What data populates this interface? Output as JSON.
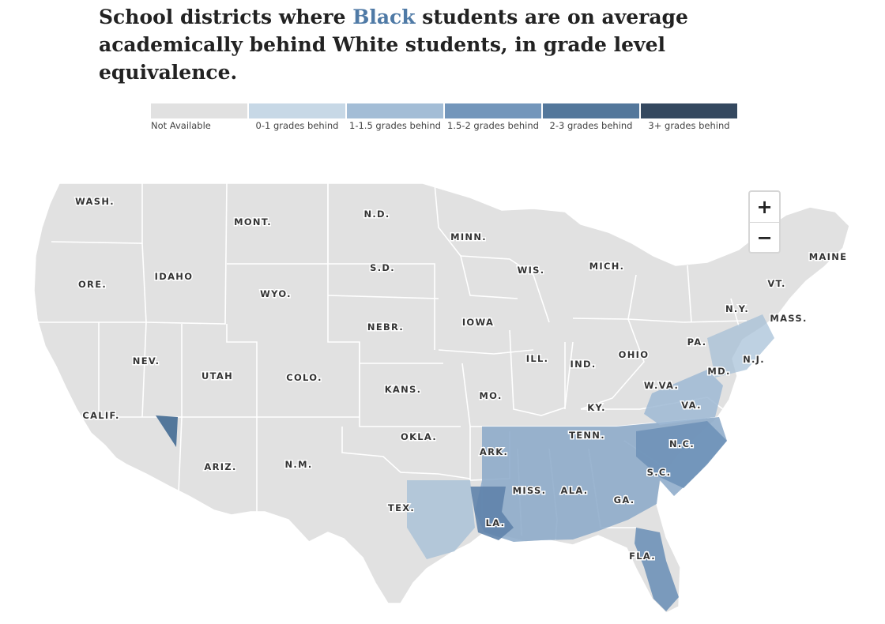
{
  "title": {
    "before": "School districts where ",
    "accent": "Black",
    "after": " students are on average academically behind White students, in grade level equivalence."
  },
  "legend": [
    {
      "label": "Not Available",
      "color": "#e1e1e1"
    },
    {
      "label": "0-1 grades behind",
      "color": "#c7d8e6"
    },
    {
      "label": "1-1.5 grades behind",
      "color": "#a3bdd6"
    },
    {
      "label": "1.5-2 grades behind",
      "color": "#7396bb"
    },
    {
      "label": "2-3 grades behind",
      "color": "#53779b"
    },
    {
      "label": "3+ grades behind",
      "color": "#34485f"
    }
  ],
  "state_labels": [
    "WASH.",
    "MONT.",
    "N.D.",
    "MINN.",
    "S.D.",
    "WIS.",
    "MICH.",
    "MAINE",
    "ORE.",
    "IDAHO",
    "WYO.",
    "VT.",
    "N.Y.",
    "MASS.",
    "IOWA",
    "NEBR.",
    "PA.",
    "NEV.",
    "UTAH",
    "COLO.",
    "ILL.",
    "IND.",
    "OHIO",
    "N.J.",
    "MD.",
    "KANS.",
    "MO.",
    "W.VA.",
    "VA.",
    "KY.",
    "CALIF.",
    "OKLA.",
    "TENN.",
    "N.C.",
    "ARK.",
    "ARIZ.",
    "N.M.",
    "S.C.",
    "MISS.",
    "ALA.",
    "GA.",
    "TEX.",
    "LA.",
    "FLA."
  ],
  "zoom": {
    "in": "+",
    "out": "−"
  }
}
